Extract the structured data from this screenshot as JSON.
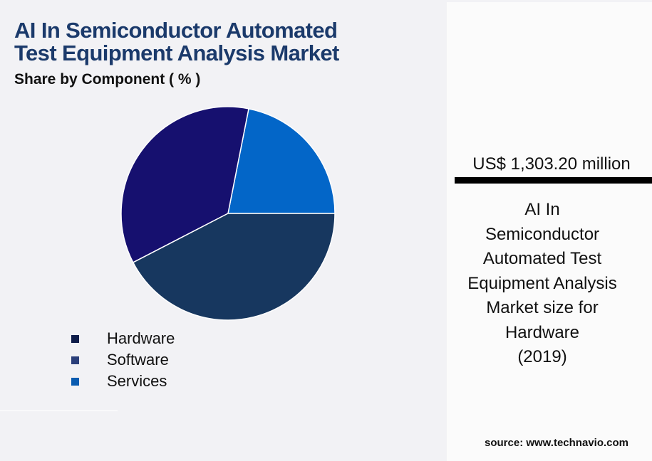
{
  "header": {
    "title_line1": "AI In Semiconductor Automated",
    "title_line2": "Test Equipment Analysis Market",
    "subtitle": "Share by Component ( % )"
  },
  "legend": [
    {
      "label": "Hardware",
      "color": "#0f1d4a"
    },
    {
      "label": "Software",
      "color": "#2b3f7a"
    },
    {
      "label": "Services",
      "color": "#0a5cb0"
    }
  ],
  "callout": {
    "value": "US$ 1,303.20 million",
    "description": "AI In\nSemiconductor\nAutomated Test\nEquipment Analysis\nMarket size for\nHardware\n(2019)"
  },
  "footer": {
    "source": "source: www.technavio.com"
  },
  "chart_data": {
    "type": "pie",
    "title": "AI In Semiconductor Automated Test Equipment Analysis Market",
    "subtitle": "Share by Component ( % )",
    "categories": [
      "Hardware",
      "Software",
      "Services"
    ],
    "values": [
      42.4,
      35.7,
      21.9
    ],
    "slice_colors": [
      "#17375f",
      "#16106f",
      "#0366c8"
    ],
    "legend_colors": [
      "#0f1d4a",
      "#2b3f7a",
      "#0a5cb0"
    ],
    "legend_position": "bottom-left",
    "start_angle_deg": 0,
    "direction": "counterclockwise-from-services",
    "annotations": [
      "US$ 1,303.20 million — Market size for Hardware (2019)"
    ]
  }
}
